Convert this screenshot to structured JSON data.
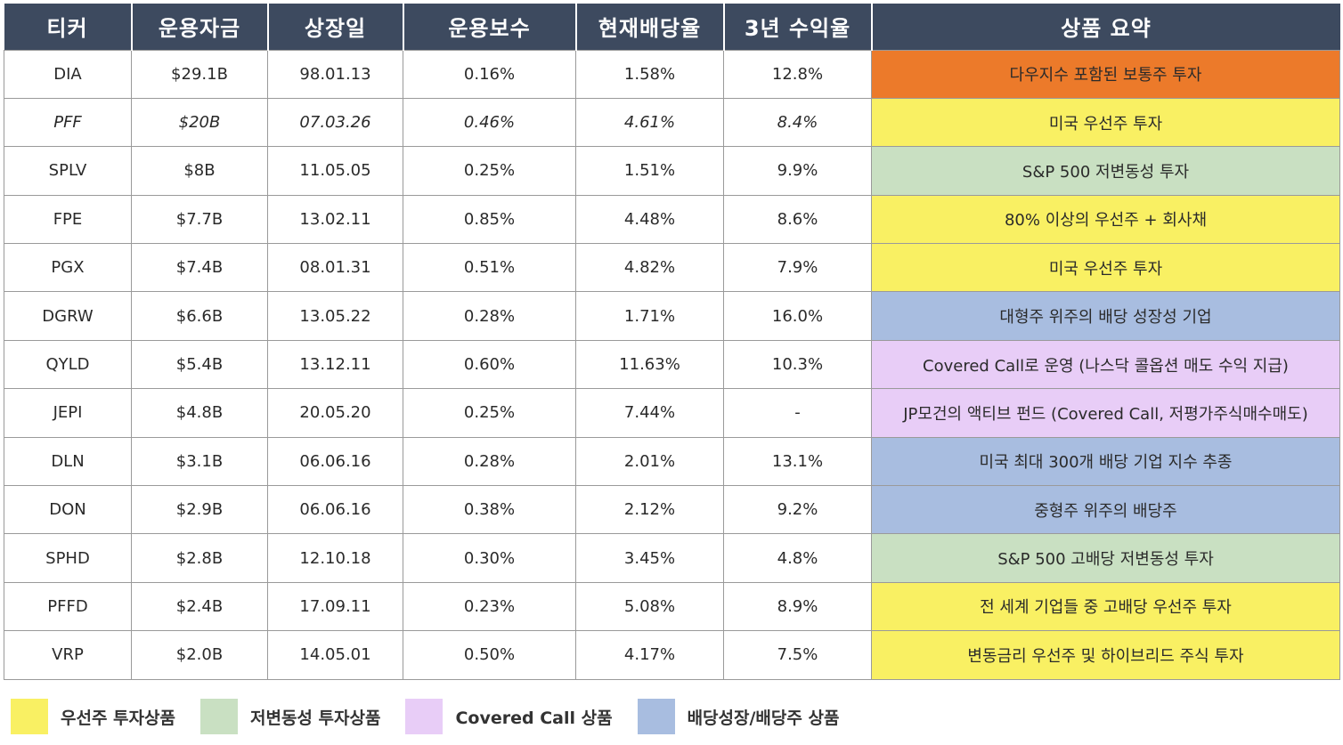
{
  "table": {
    "headers": [
      "티커",
      "운용자금",
      "상장일",
      "운용보수",
      "현재배당율",
      "3년 수익율",
      "상품 요약"
    ],
    "rows": [
      {
        "ticker": "DIA",
        "aum": "$29.1B",
        "listed": "98.01.13",
        "fee": "0.16%",
        "yield": "1.58%",
        "ret3y": "12.8%",
        "summary": "다우지수 포함된 보통주 투자",
        "category": "orange"
      },
      {
        "ticker": "PFF",
        "aum": "$20B",
        "listed": "07.03.26",
        "fee": "0.46%",
        "yield": "4.61%",
        "ret3y": "8.4%",
        "summary": "미국 우선주 투자",
        "category": "yellow"
      },
      {
        "ticker": "SPLV",
        "aum": "$8B",
        "listed": "11.05.05",
        "fee": "0.25%",
        "yield": "1.51%",
        "ret3y": "9.9%",
        "summary": "S&P 500 저변동성 투자",
        "category": "green"
      },
      {
        "ticker": "FPE",
        "aum": "$7.7B",
        "listed": "13.02.11",
        "fee": "0.85%",
        "yield": "4.48%",
        "ret3y": "8.6%",
        "summary": "80% 이상의 우선주 + 회사채",
        "category": "yellow"
      },
      {
        "ticker": "PGX",
        "aum": "$7.4B",
        "listed": "08.01.31",
        "fee": "0.51%",
        "yield": "4.82%",
        "ret3y": "7.9%",
        "summary": "미국 우선주 투자",
        "category": "yellow"
      },
      {
        "ticker": "DGRW",
        "aum": "$6.6B",
        "listed": "13.05.22",
        "fee": "0.28%",
        "yield": "1.71%",
        "ret3y": "16.0%",
        "summary": "대형주 위주의 배당 성장성 기업",
        "category": "blue"
      },
      {
        "ticker": "QYLD",
        "aum": "$5.4B",
        "listed": "13.12.11",
        "fee": "0.60%",
        "yield": "11.63%",
        "ret3y": "10.3%",
        "summary": "Covered Call로 운영 (나스닥 콜옵션 매도 수익 지급)",
        "category": "purple"
      },
      {
        "ticker": "JEPI",
        "aum": "$4.8B",
        "listed": "20.05.20",
        "fee": "0.25%",
        "yield": "7.44%",
        "ret3y": "-",
        "summary": "JP모건의 액티브 펀드 (Covered Call, 저평가주식매수매도)",
        "category": "purple"
      },
      {
        "ticker": "DLN",
        "aum": "$3.1B",
        "listed": "06.06.16",
        "fee": "0.28%",
        "yield": "2.01%",
        "ret3y": "13.1%",
        "summary": "미국 최대 300개 배당 기업 지수 추종",
        "category": "blue"
      },
      {
        "ticker": "DON",
        "aum": "$2.9B",
        "listed": "06.06.16",
        "fee": "0.38%",
        "yield": "2.12%",
        "ret3y": "9.2%",
        "summary": "중형주 위주의 배당주",
        "category": "blue"
      },
      {
        "ticker": "SPHD",
        "aum": "$2.8B",
        "listed": "12.10.18",
        "fee": "0.30%",
        "yield": "3.45%",
        "ret3y": "4.8%",
        "summary": "S&P 500 고배당 저변동성 투자",
        "category": "green"
      },
      {
        "ticker": "PFFD",
        "aum": "$2.4B",
        "listed": "17.09.11",
        "fee": "0.23%",
        "yield": "5.08%",
        "ret3y": "8.9%",
        "summary": "전 세계 기업들 중 고배당 우선주 투자",
        "category": "yellow"
      },
      {
        "ticker": "VRP",
        "aum": "$2.0B",
        "listed": "14.05.01",
        "fee": "0.50%",
        "yield": "4.17%",
        "ret3y": "7.5%",
        "summary": "변동금리 우선주 및 하이브리드 주식 투자",
        "category": "yellow"
      }
    ]
  },
  "legend": [
    {
      "label": "우선주 투자상품",
      "category": "yellow"
    },
    {
      "label": "저변동성 투자상품",
      "category": "green"
    },
    {
      "label": "Covered Call 상품",
      "category": "purple"
    },
    {
      "label": "배당성장/배당주 상품",
      "category": "blue"
    }
  ],
  "colors": {
    "header_bg": "#3d4a5f",
    "orange": "#ec7a2a",
    "yellow": "#f9f063",
    "green": "#c9e0c2",
    "purple": "#e8cdf7",
    "blue": "#a8bde0"
  }
}
